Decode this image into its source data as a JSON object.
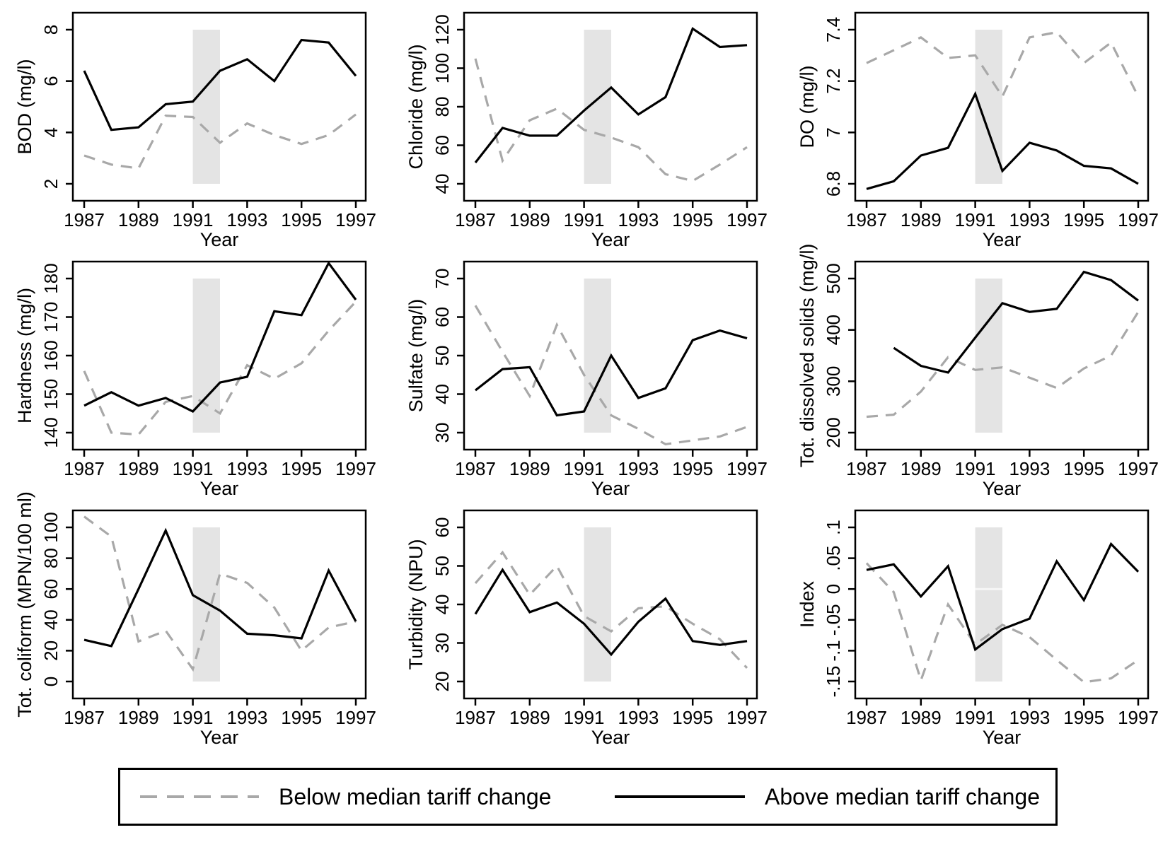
{
  "figure": {
    "legend": {
      "below_label": "Below median tariff change",
      "above_label": "Above median tariff change"
    },
    "colors": {
      "above_line": "#000000",
      "below_line": "#a8a8a8",
      "band_fill": "#e4e4e4",
      "background": "#ffffff"
    }
  },
  "chart_common": {
    "type": "line",
    "x": [
      1987,
      1988,
      1989,
      1990,
      1991,
      1992,
      1993,
      1994,
      1995,
      1996,
      1997
    ],
    "xticks": [
      1987,
      1989,
      1991,
      1993,
      1995,
      1997
    ],
    "xtick_labels": [
      "1987",
      "1989",
      "1991",
      "1993",
      "1995",
      "1997"
    ],
    "xlabel": "Year",
    "band_x": [
      1991,
      1992
    ],
    "series_names": {
      "below": "Below median tariff change",
      "above": "Above median tariff change"
    },
    "grid": "off",
    "legend_position": "bottom"
  },
  "chart_data": [
    {
      "id": "bod",
      "ylabel": "BOD (mg/l)",
      "ylim": [
        2,
        8
      ],
      "yticks": [
        2,
        4,
        6,
        8
      ],
      "ytick_labels": [
        "2",
        "4",
        "6",
        "8"
      ],
      "zero_line": false,
      "series": {
        "below": [
          3.1,
          2.75,
          2.6,
          4.65,
          4.6,
          3.6,
          4.35,
          3.9,
          3.55,
          3.9,
          4.7
        ],
        "above": [
          6.4,
          4.1,
          4.2,
          5.1,
          5.2,
          6.4,
          6.85,
          6.0,
          7.6,
          7.5,
          6.2
        ]
      }
    },
    {
      "id": "chloride",
      "ylabel": "Chloride (mg/l)",
      "ylim": [
        40,
        120
      ],
      "yticks": [
        40,
        60,
        80,
        100,
        120
      ],
      "ytick_labels": [
        "40",
        "60",
        "80",
        "100",
        "120"
      ],
      "zero_line": false,
      "series": {
        "below": [
          105,
          52,
          73,
          79,
          68,
          64,
          59,
          45,
          41.5,
          50,
          59
        ],
        "above": [
          51,
          69,
          65,
          65,
          78,
          90,
          76,
          85,
          120.5,
          111,
          112
        ]
      }
    },
    {
      "id": "do",
      "ylabel": "DO (mg/l)",
      "ylim": [
        6.8,
        7.4
      ],
      "yticks": [
        6.8,
        7.0,
        7.2,
        7.4
      ],
      "ytick_labels": [
        "6.8",
        "7",
        "7.2",
        "7.4"
      ],
      "zero_line": false,
      "series": {
        "below": [
          7.27,
          7.32,
          7.37,
          7.29,
          7.3,
          7.14,
          7.37,
          7.39,
          7.27,
          7.35,
          7.14
        ],
        "above": [
          6.78,
          6.81,
          6.91,
          6.94,
          7.15,
          6.85,
          6.96,
          6.93,
          6.87,
          6.86,
          6.8
        ]
      }
    },
    {
      "id": "hardness",
      "ylabel": "Hardness (mg/l)",
      "ylim": [
        140,
        180
      ],
      "yticks": [
        140,
        150,
        160,
        170,
        180
      ],
      "ytick_labels": [
        "140",
        "150",
        "160",
        "170",
        "180"
      ],
      "zero_line": false,
      "series": {
        "below": [
          156,
          140,
          139.5,
          148,
          149.5,
          145,
          157.5,
          154,
          158,
          166.5,
          174
        ],
        "above": [
          147,
          150.5,
          147,
          149,
          145.5,
          153,
          154.5,
          171.5,
          170.5,
          184,
          174.5
        ]
      }
    },
    {
      "id": "sulfate",
      "ylabel": "Sulfate (mg/l)",
      "ylim": [
        30,
        70
      ],
      "yticks": [
        30,
        40,
        50,
        60,
        70
      ],
      "ytick_labels": [
        "30",
        "40",
        "50",
        "60",
        "70"
      ],
      "zero_line": false,
      "series": {
        "below": [
          63,
          51,
          39.5,
          58,
          45,
          34.5,
          31,
          27,
          28,
          29,
          31.5
        ],
        "above": [
          41,
          46.5,
          47,
          34.5,
          35.5,
          50,
          39,
          41.5,
          54,
          56.5,
          54.5
        ]
      }
    },
    {
      "id": "tds",
      "ylabel": "Tot. dissolved solids (mg/l)",
      "ylim": [
        200,
        500
      ],
      "yticks": [
        200,
        300,
        400,
        500
      ],
      "ytick_labels": [
        "200",
        "300",
        "400",
        "500"
      ],
      "zero_line": false,
      "series": {
        "below": [
          231,
          235,
          280,
          347,
          322,
          327,
          307,
          287,
          325,
          350,
          435
        ],
        "above": [
          null,
          365,
          330,
          317,
          385,
          452,
          435,
          441,
          513,
          497,
          457
        ]
      }
    },
    {
      "id": "coliform",
      "ylabel": "Tot. coliform (MPN/100 ml)",
      "ylim": [
        0,
        100
      ],
      "yticks": [
        0,
        20,
        40,
        60,
        80,
        100
      ],
      "ytick_labels": [
        "0",
        "20",
        "40",
        "60",
        "80",
        "100"
      ],
      "zero_line": false,
      "series": {
        "below": [
          107,
          94,
          26,
          33,
          8,
          70,
          64,
          48,
          20,
          35,
          39
        ],
        "above": [
          27,
          23,
          60,
          98,
          56,
          46,
          31,
          30,
          28,
          72,
          39
        ]
      }
    },
    {
      "id": "turbidity",
      "ylabel": "Turbidity (NPU)",
      "ylim": [
        20,
        60
      ],
      "yticks": [
        20,
        30,
        40,
        50,
        60
      ],
      "ytick_labels": [
        "20",
        "30",
        "40",
        "50",
        "60"
      ],
      "zero_line": false,
      "series": {
        "below": [
          45.5,
          53.5,
          42.5,
          50,
          37,
          33,
          39,
          39.5,
          35,
          31,
          23.5
        ],
        "above": [
          37.5,
          49,
          38,
          40.5,
          35,
          27,
          35.5,
          41.5,
          30.5,
          29.5,
          30.5
        ]
      }
    },
    {
      "id": "index",
      "ylabel": "Index",
      "ylim": [
        -0.15,
        0.1
      ],
      "yticks": [
        -0.15,
        -0.1,
        -0.05,
        0,
        0.05,
        0.1
      ],
      "ytick_labels": [
        "-.15",
        "-.1",
        "-.05",
        "0",
        ".05",
        ".1"
      ],
      "zero_line": true,
      "series": {
        "below": [
          0.042,
          -0.005,
          -0.148,
          -0.025,
          -0.09,
          -0.058,
          -0.078,
          -0.115,
          -0.151,
          -0.145,
          -0.115
        ],
        "above": [
          0.031,
          0.04,
          -0.012,
          0.037,
          -0.098,
          -0.065,
          -0.048,
          0.045,
          -0.018,
          0.073,
          0.028
        ]
      }
    }
  ]
}
